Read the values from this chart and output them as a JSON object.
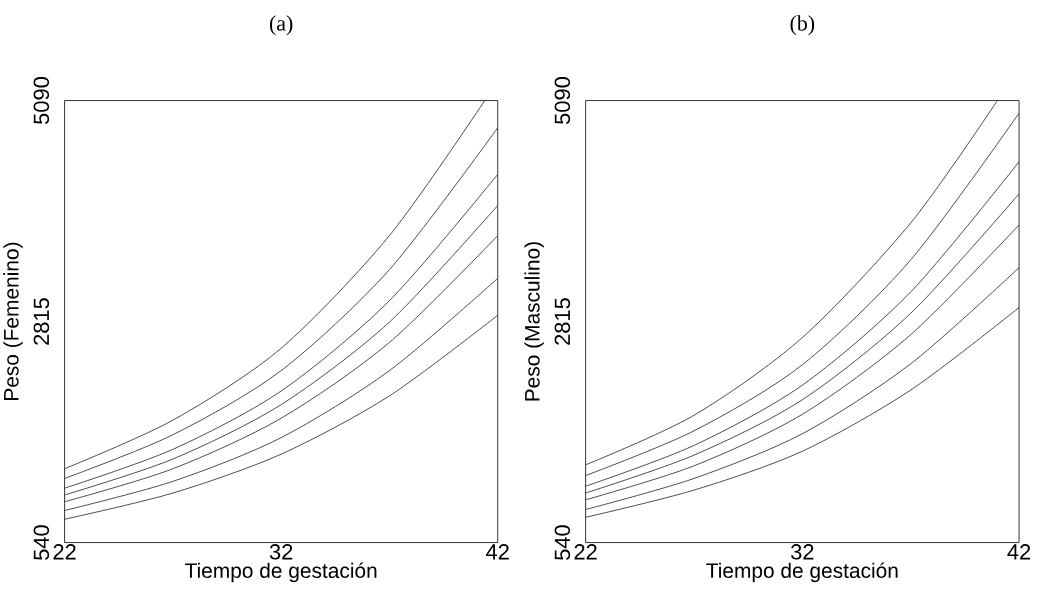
{
  "chart_data": [
    {
      "type": "line",
      "title": "(a)",
      "xlabel": "Tiempo de gestación",
      "ylabel": "Peso (Femenino)",
      "x": [
        22,
        27,
        32,
        37,
        42
      ],
      "xlim": [
        22,
        42
      ],
      "ylim": [
        540,
        5090
      ],
      "xticks": [
        22,
        32,
        42
      ],
      "yticks": [
        540,
        2815,
        5090
      ],
      "marker": "none",
      "series": [
        {
          "color": "#000000",
          "x": [
            22,
            27,
            32,
            37,
            41.4
          ],
          "values": [
            1300,
            1800,
            2540,
            3700,
            5090
          ]
        },
        {
          "color": "#000000",
          "values": [
            1200,
            1650,
            2310,
            3350,
            4810
          ]
        },
        {
          "color": "#000000",
          "values": [
            1100,
            1500,
            2100,
            3030,
            4330
          ]
        },
        {
          "color": "#000000",
          "values": [
            1030,
            1400,
            1960,
            2810,
            4010
          ]
        },
        {
          "color": "#000000",
          "values": [
            960,
            1300,
            1820,
            2600,
            3700
          ]
        },
        {
          "color": "#000000",
          "values": [
            870,
            1170,
            1620,
            2310,
            3260
          ]
        },
        {
          "color": "#000000",
          "values": [
            780,
            1050,
            1450,
            2050,
            2880
          ]
        }
      ]
    },
    {
      "type": "line",
      "title": "(b)",
      "xlabel": "Tiempo de gestación",
      "ylabel": "Peso (Masculino)",
      "x": [
        22,
        27,
        32,
        37,
        42
      ],
      "xlim": [
        22,
        42
      ],
      "ylim": [
        540,
        5090
      ],
      "xticks": [
        22,
        32,
        42
      ],
      "yticks": [
        540,
        2815,
        5090
      ],
      "marker": "none",
      "series": [
        {
          "color": "#000000",
          "x": [
            22,
            27,
            32,
            37,
            41.0
          ],
          "values": [
            1340,
            1850,
            2650,
            3830,
            5090
          ]
        },
        {
          "color": "#000000",
          "values": [
            1230,
            1690,
            2370,
            3450,
            4960
          ]
        },
        {
          "color": "#000000",
          "values": [
            1120,
            1540,
            2160,
            3120,
            4460
          ]
        },
        {
          "color": "#000000",
          "values": [
            1050,
            1440,
            2010,
            2900,
            4130
          ]
        },
        {
          "color": "#000000",
          "values": [
            980,
            1330,
            1860,
            2680,
            3810
          ]
        },
        {
          "color": "#000000",
          "values": [
            880,
            1200,
            1660,
            2380,
            3370
          ]
        },
        {
          "color": "#000000",
          "values": [
            800,
            1080,
            1480,
            2110,
            2960
          ]
        }
      ]
    }
  ]
}
